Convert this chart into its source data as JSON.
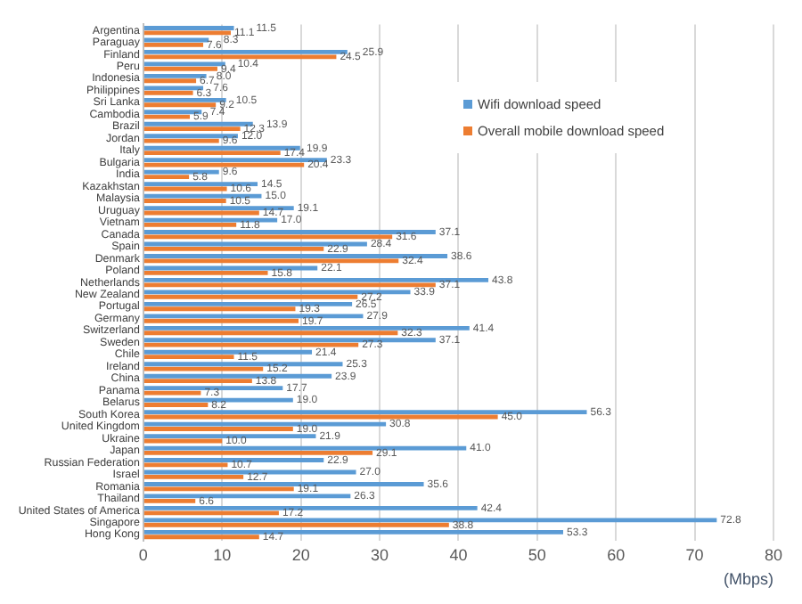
{
  "chart_data": {
    "type": "bar",
    "orientation": "horizontal",
    "xlabel": "(Mbps)",
    "categories": [
      "Argentina",
      "Paraguay",
      "Finland",
      "Peru",
      "Indonesia",
      "Philippines",
      "Sri Lanka",
      "Cambodia",
      "Brazil",
      "Jordan",
      "Italy",
      "Bulgaria",
      "India",
      "Kazakhstan",
      "Malaysia",
      "Uruguay",
      "Vietnam",
      "Canada",
      "Spain",
      "Denmark",
      "Poland",
      "Netherlands",
      "New Zealand",
      "Portugal",
      "Germany",
      "Switzerland",
      "Sweden",
      "Chile",
      "Ireland",
      "China",
      "Panama",
      "Belarus",
      "South Korea",
      "United Kingdom",
      "Ukraine",
      "Japan",
      "Russian Federation",
      "Israel",
      "Romania",
      "Thailand",
      "United States of America",
      "Singapore",
      "Hong Kong"
    ],
    "series": [
      {
        "name": "Wifi download speed",
        "color": "#5b9bd5",
        "value_labels": [
          "11.5",
          "8.3",
          "25.9",
          "10.4",
          "8.0",
          "7.6",
          "10.5",
          "7.4",
          "13.9",
          "12.0",
          "19.9",
          "23.3",
          "9.6",
          "14.5",
          "15.0",
          "19.1",
          "17.0",
          "37.1",
          "28.4",
          "38.6",
          "22.1",
          "43.8",
          "33.9",
          "26.5",
          "27.9",
          "41.4",
          "37.1",
          "21.4",
          "25.3",
          "23.9",
          "17.7",
          "19.0",
          "56.3",
          "30.8",
          "21.9",
          "41.0",
          "22.9",
          "27.0",
          "35.6",
          "26.3",
          "42.4",
          "72.8",
          "53.3"
        ],
        "values": [
          11.5,
          8.3,
          25.9,
          10.4,
          8.0,
          7.6,
          10.5,
          7.4,
          13.9,
          12.0,
          19.9,
          23.3,
          9.6,
          14.5,
          15.0,
          19.1,
          17.0,
          37.1,
          28.4,
          38.6,
          22.1,
          43.8,
          33.9,
          26.5,
          27.9,
          41.4,
          37.1,
          21.4,
          25.3,
          23.9,
          17.7,
          19.0,
          56.3,
          30.8,
          21.9,
          41.0,
          22.9,
          27.0,
          35.6,
          26.3,
          42.4,
          72.8,
          53.3
        ]
      },
      {
        "name": "Overall mobile download speed",
        "color": "#ed7d31",
        "value_labels": [
          "11.1",
          "7.6",
          "24.5",
          "9.4",
          "6.7",
          "6.3",
          "9.2",
          "5.9",
          "12.3",
          "9.6",
          "17.4",
          "20.4",
          "5.8",
          "10.6",
          "10.5",
          "14.7",
          "11.8",
          "31.6",
          "22.9",
          "32.4",
          "15.8",
          "37.1",
          "27.2",
          "19.3",
          "19.7",
          "32.3",
          "27.3",
          "11.5",
          "15.2",
          "13.8",
          "7.3",
          "8.2",
          "45.0",
          "19.0",
          "10.0",
          "29.1",
          "10.7",
          "12.7",
          "19.1",
          "6.6",
          "17.2",
          "38.8",
          "14.7"
        ],
        "values": [
          11.1,
          7.6,
          24.5,
          9.4,
          6.7,
          6.3,
          9.2,
          5.9,
          12.3,
          9.6,
          17.4,
          20.4,
          5.8,
          10.6,
          10.5,
          14.7,
          11.8,
          31.6,
          22.9,
          32.4,
          15.8,
          37.1,
          27.2,
          19.3,
          19.7,
          32.3,
          27.3,
          11.5,
          15.2,
          13.8,
          7.3,
          8.2,
          45.0,
          19.0,
          10.0,
          29.1,
          10.7,
          12.7,
          19.1,
          6.6,
          17.2,
          38.8,
          14.7
        ]
      }
    ],
    "xlim": [
      0,
      80
    ],
    "xticks": [
      0,
      10,
      20,
      30,
      40,
      50,
      60,
      70,
      80
    ],
    "grid": "x",
    "legend": "top right"
  }
}
